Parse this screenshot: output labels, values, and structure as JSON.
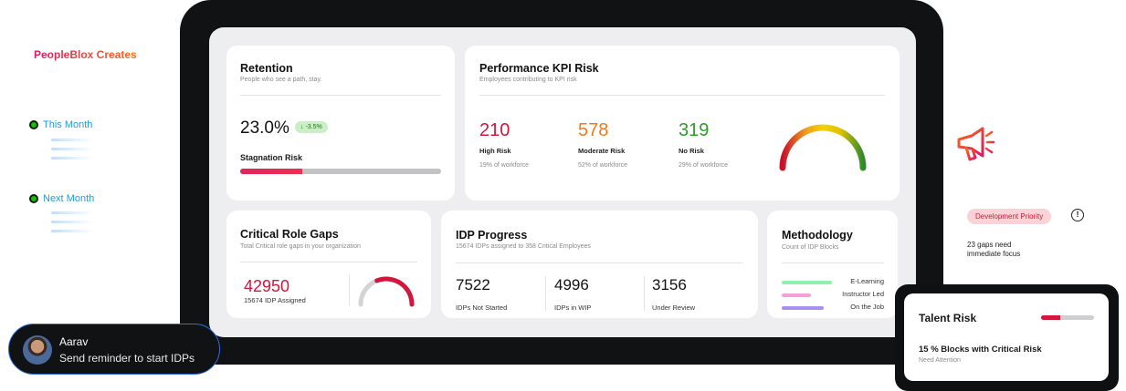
{
  "brand": "PeopleBlox Creates",
  "periods": [
    "This Month",
    "Next Month"
  ],
  "retention": {
    "title": "Retention",
    "subtitle": "People who see a path, stay.",
    "value": "23.0%",
    "delta": "↓ -3.5%",
    "stagnation_label": "Stagnation Risk",
    "stagnation_fraction": 0.31
  },
  "kpi": {
    "title": "Performance KPI Risk",
    "subtitle": "Employees contributing to KPI risk",
    "items": [
      {
        "value": "210",
        "label": "High Risk",
        "sub": "19% of workforce",
        "color": "#d3163b"
      },
      {
        "value": "578",
        "label": "Moderate  Risk",
        "sub": "52% of workforce",
        "color": "#f07a18"
      },
      {
        "value": "319",
        "label": "No Risk",
        "sub": "29% of workforce",
        "color": "#2e9b2a"
      }
    ]
  },
  "gaps": {
    "title": "Critical Role Gaps",
    "subtitle": "Total Critical role gaps in your organization",
    "value": "42950",
    "sub": "15674 IDP Assigned",
    "gauge_fraction": 0.62
  },
  "idp": {
    "title": "IDP Progress",
    "subtitle": "15674 IDPs assigned to 358 Critical Employees",
    "items": [
      {
        "value": "7522",
        "label": "IDPs Not Started"
      },
      {
        "value": "4996",
        "label": "IDPs in WIP"
      },
      {
        "value": "3156",
        "label": "Under Review"
      }
    ]
  },
  "methodology": {
    "title": "Methodology",
    "subtitle": "Count of  IDP Blocks",
    "items": [
      {
        "label": "E-Learning",
        "color": "#8ef0b0"
      },
      {
        "label": "Instructor Led",
        "color": "#f5a0d8"
      },
      {
        "label": "On the Job",
        "color": "#a890f0"
      }
    ]
  },
  "priority": {
    "pill": "Development Priority",
    "info": "!",
    "text": "23 gaps need immediate focus"
  },
  "talent": {
    "title": "Talent Risk",
    "fraction": 0.37,
    "line": "15 % Blocks with Critical Risk",
    "sub": "Need Attention"
  },
  "reminder": {
    "name": "Aarav",
    "message": "Send reminder to start IDPs"
  }
}
